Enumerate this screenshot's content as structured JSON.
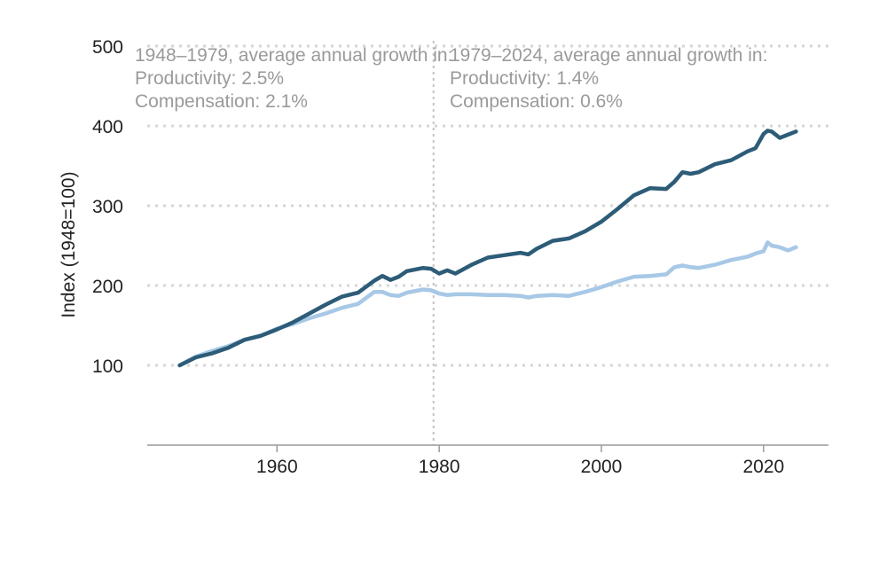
{
  "chart_data": {
    "type": "line",
    "title": "",
    "xlabel": "",
    "ylabel": "Index (1948=100)",
    "xlim": [
      1944,
      2028
    ],
    "ylim": [
      0,
      500
    ],
    "x_ticks": [
      "1960",
      "1980",
      "2000",
      "2020"
    ],
    "y_ticks": [
      "100",
      "200",
      "300",
      "400",
      "500"
    ],
    "grid": "horizontal dotted",
    "divider_year": 1979.3,
    "annotations": [
      {
        "period": "1948–1979, average annual growth in:",
        "productivity": "Productivity: 2.5%",
        "compensation": "Compensation: 2.1%"
      },
      {
        "period": "1979–2024, average annual growth in:",
        "productivity": "Productivity: 1.4%",
        "compensation": "Compensation: 0.6%"
      }
    ],
    "x": [
      1948,
      1950,
      1952,
      1954,
      1956,
      1958,
      1960,
      1962,
      1964,
      1966,
      1968,
      1970,
      1972,
      1973,
      1974,
      1975,
      1976,
      1978,
      1979,
      1980,
      1981,
      1982,
      1984,
      1986,
      1988,
      1990,
      1991,
      1992,
      1994,
      1996,
      1998,
      2000,
      2002,
      2004,
      2006,
      2008,
      2009,
      2010,
      2011,
      2012,
      2014,
      2016,
      2018,
      2019,
      2020,
      2020.5,
      2021,
      2022,
      2023,
      2024
    ],
    "series": [
      {
        "name": "Productivity",
        "color": "#2d5c78",
        "values": [
          100,
          110,
          115,
          122,
          132,
          137,
          145,
          154,
          165,
          176,
          186,
          191,
          206,
          212,
          207,
          211,
          218,
          222,
          221,
          215,
          219,
          215,
          226,
          235,
          238,
          241,
          239,
          246,
          256,
          259,
          268,
          280,
          296,
          313,
          322,
          321,
          330,
          342,
          340,
          342,
          352,
          357,
          368,
          372,
          390,
          394,
          393,
          385,
          389,
          393
        ]
      },
      {
        "name": "Compensation",
        "color": "#a7c8e6",
        "values": [
          100,
          111,
          118,
          124,
          132,
          137,
          146,
          152,
          159,
          165,
          172,
          177,
          192,
          192,
          188,
          187,
          191,
          195,
          194,
          190,
          188,
          189,
          189,
          188,
          188,
          187,
          185,
          187,
          188,
          187,
          192,
          198,
          205,
          211,
          212,
          214,
          223,
          225,
          223,
          222,
          226,
          232,
          236,
          240,
          243,
          254,
          250,
          248,
          244,
          248
        ]
      }
    ]
  }
}
